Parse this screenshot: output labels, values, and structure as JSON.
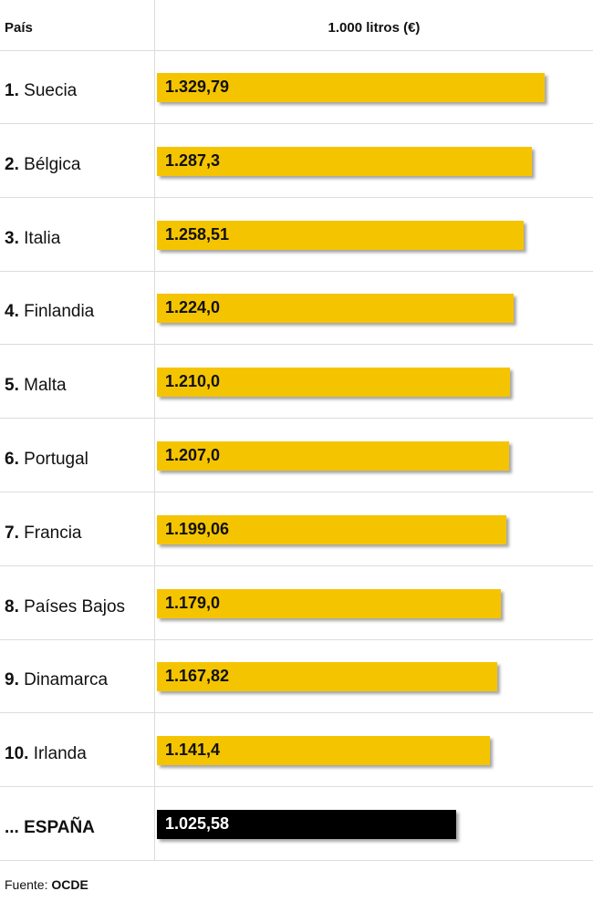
{
  "chart_data": {
    "type": "bar",
    "header": {
      "country": "País",
      "value": "1.000 litros (€)"
    },
    "rows": [
      {
        "rank": "1.",
        "country": "Suecia",
        "value": 1329.79,
        "label": "1.329,79"
      },
      {
        "rank": "2.",
        "country": "Bélgica",
        "value": 1287.3,
        "label": "1.287,3"
      },
      {
        "rank": "3.",
        "country": "Italia",
        "value": 1258.51,
        "label": "1.258,51"
      },
      {
        "rank": "4.",
        "country": "Finlandia",
        "value": 1224.0,
        "label": "1.224,0"
      },
      {
        "rank": "5.",
        "country": "Malta",
        "value": 1210.0,
        "label": "1.210,0"
      },
      {
        "rank": "6.",
        "country": "Portugal",
        "value": 1207.0,
        "label": "1.207,0"
      },
      {
        "rank": "7.",
        "country": "Francia",
        "value": 1199.06,
        "label": "1.199,06"
      },
      {
        "rank": "8.",
        "country": "Países Bajos",
        "value": 1179.0,
        "label": "1.179,0"
      },
      {
        "rank": "9.",
        "country": "Dinamarca",
        "value": 1167.82,
        "label": "1.167,82"
      },
      {
        "rank": "10.",
        "country": "Irlanda",
        "value": 1141.4,
        "label": "1.141,4"
      },
      {
        "rank": "... ESPAÑA",
        "country": "",
        "value": 1025.58,
        "label": "1.025,58",
        "highlight": true
      }
    ],
    "colors": {
      "bar": "#f5c400",
      "highlight": "#000000"
    }
  },
  "source": {
    "prefix": "Fuente:",
    "org": "OCDE"
  }
}
